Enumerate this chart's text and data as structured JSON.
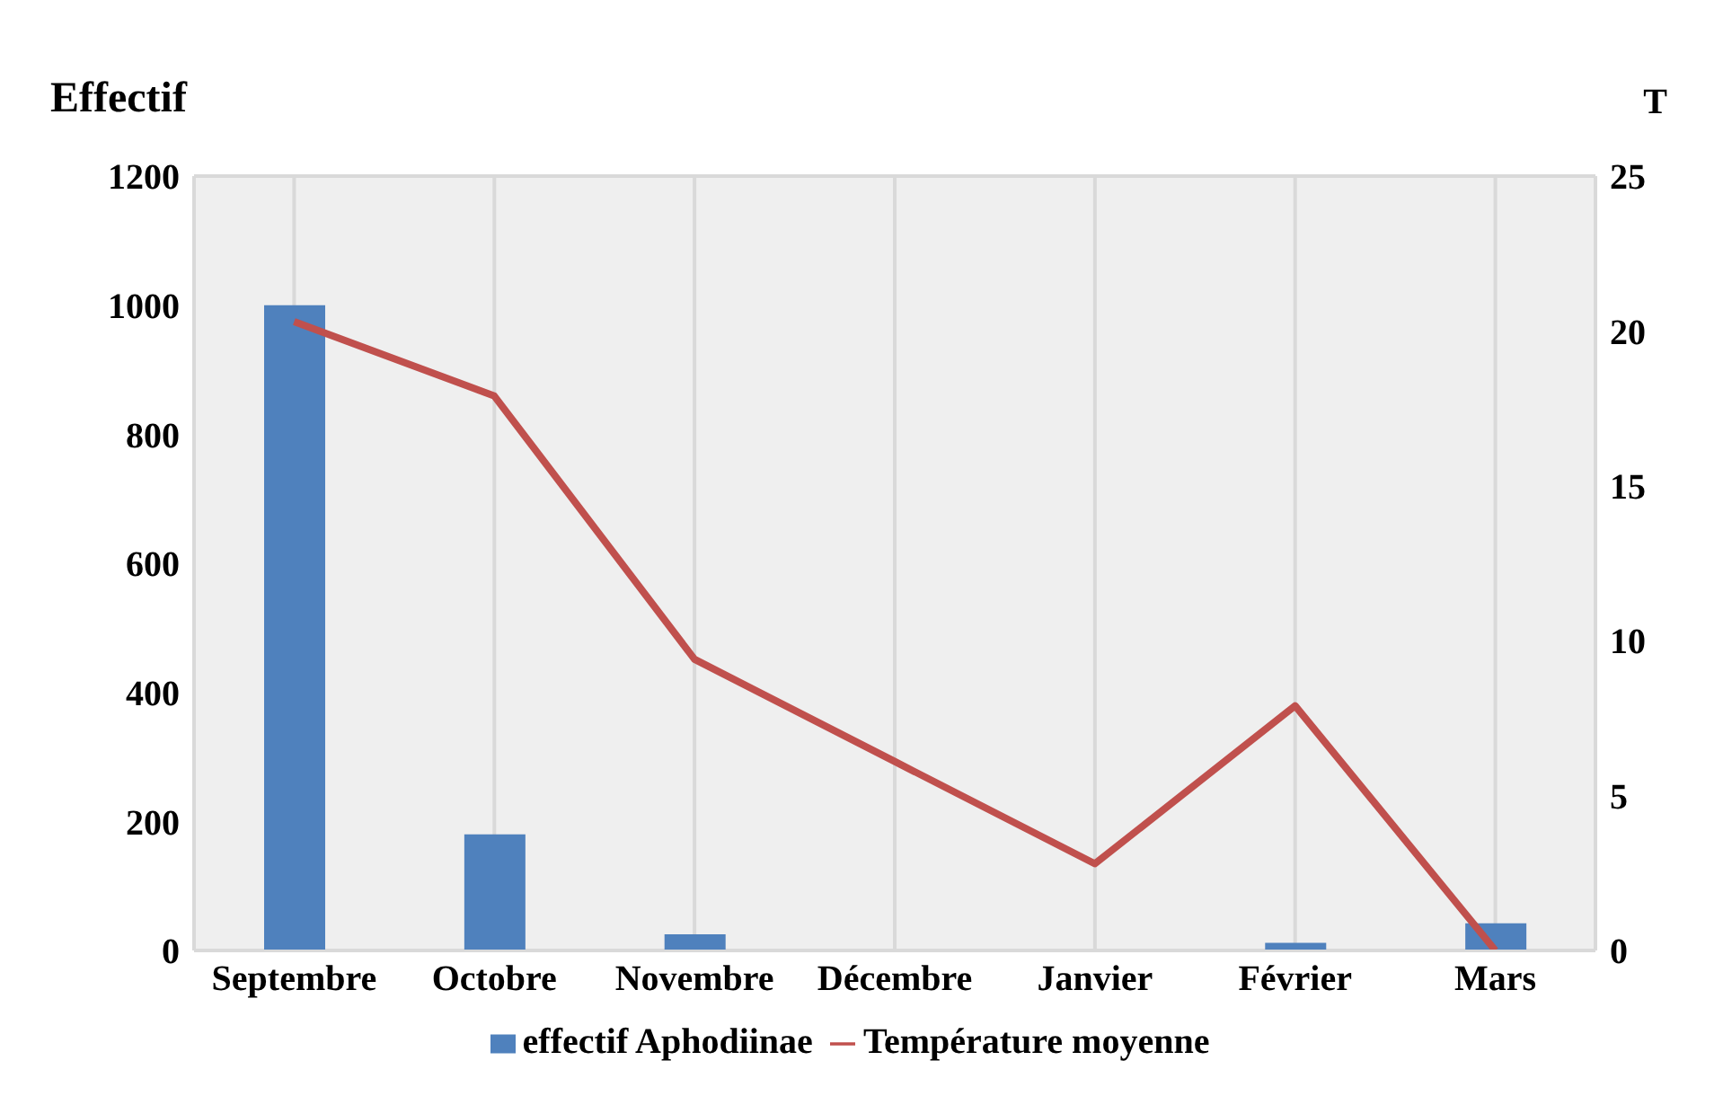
{
  "chart_data": {
    "type": "bar",
    "ylabel": "Effectif",
    "y2label": "T",
    "categories": [
      "Septembre",
      "Octobre",
      "Novembre",
      "Décembre",
      "Janvier",
      "Février",
      "Mars"
    ],
    "series": [
      {
        "name": "effectif Aphodiinae",
        "color": "#4f81bd",
        "values": [
          1000,
          180,
          25,
          0,
          0,
          12,
          42
        ]
      },
      {
        "name": "Température moyenne",
        "type": "line",
        "axis": "y2",
        "color": "#c0504d",
        "values": [
          20.3,
          17.9,
          9.4,
          6.1,
          2.8,
          7.9,
          0
        ]
      }
    ],
    "ylim": [
      0,
      1200
    ],
    "yticks": [
      0,
      200,
      400,
      600,
      800,
      1000,
      1200
    ],
    "y2lim": [
      0,
      25
    ],
    "y2ticks": [
      0,
      5,
      10,
      15,
      20,
      25
    ],
    "grid": true,
    "legend": "bottom",
    "marker": "none",
    "line_style": "solid"
  }
}
